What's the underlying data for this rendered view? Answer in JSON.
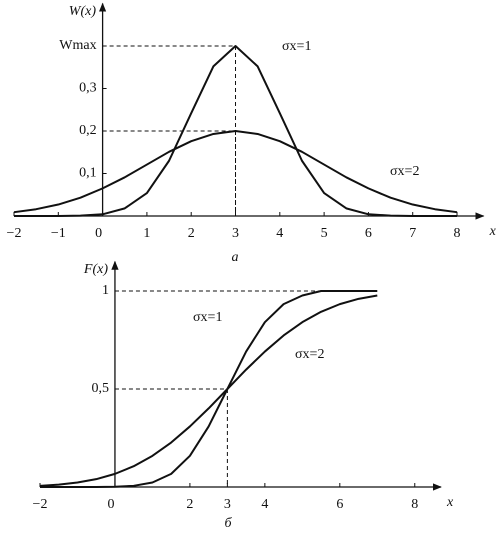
{
  "chart_data": [
    {
      "type": "line",
      "caption": "а",
      "y_label": "W(x)",
      "x_label": "x",
      "guides": "peak",
      "xlim": [
        -2,
        8.6
      ],
      "ylim": [
        0,
        0.5
      ],
      "xticks": [
        {
          "value": -2,
          "label": "−2"
        },
        {
          "value": -1,
          "label": "−1"
        },
        0,
        1,
        2,
        3,
        4,
        5,
        6,
        7,
        8
      ],
      "yticks": [
        {
          "value": 0.1,
          "label": "0,1"
        },
        {
          "value": 0.2,
          "label": "0,2"
        },
        {
          "value": 0.3,
          "label": "0,3"
        },
        {
          "value": 0.4,
          "label": "Wmax"
        }
      ],
      "x": [
        -2,
        -1.5,
        -1,
        -0.5,
        0,
        0.5,
        1,
        1.5,
        2,
        2.5,
        3,
        3.5,
        4,
        4.5,
        5,
        5.5,
        6,
        6.5,
        7,
        7.5,
        8
      ],
      "series": [
        {
          "name": "σx=1",
          "color": "#111111",
          "values": [
            0,
            0,
            0,
            0.001,
            0.004,
            0.018,
            0.054,
            0.13,
            0.242,
            0.352,
            0.4,
            0.352,
            0.242,
            0.13,
            0.054,
            0.018,
            0.004,
            0.001,
            0,
            0,
            0
          ]
        },
        {
          "name": "σx=2",
          "color": "#111111",
          "values": [
            0.009,
            0.016,
            0.027,
            0.043,
            0.065,
            0.091,
            0.121,
            0.151,
            0.176,
            0.193,
            0.2,
            0.193,
            0.176,
            0.151,
            0.121,
            0.091,
            0.065,
            0.043,
            0.027,
            0.016,
            0.009
          ]
        }
      ]
    },
    {
      "type": "line",
      "caption": "б",
      "y_label": "F(x)",
      "x_label": "x",
      "guides": "levels",
      "xlim": [
        -2,
        8.7
      ],
      "ylim": [
        0,
        1.15
      ],
      "xticks": [
        {
          "value": -2,
          "label": "−2"
        },
        0,
        2,
        3,
        4,
        6,
        8
      ],
      "yticks": [
        {
          "value": 0.5,
          "label": "0,5"
        },
        1
      ],
      "x": [
        -2,
        -1.5,
        -1,
        -0.5,
        0,
        0.5,
        1,
        1.5,
        2,
        2.5,
        3,
        3.5,
        4,
        4.5,
        5,
        5.5,
        6,
        6.5,
        7
      ],
      "series": [
        {
          "name": "σx=1",
          "color": "#111111",
          "values": [
            0,
            0,
            0,
            0,
            0.001,
            0.006,
            0.023,
            0.067,
            0.159,
            0.309,
            0.5,
            0.691,
            0.841,
            0.933,
            0.977,
            1,
            1,
            1,
            1
          ]
        },
        {
          "name": "σx=2",
          "color": "#111111",
          "values": [
            0.006,
            0.012,
            0.023,
            0.04,
            0.067,
            0.106,
            0.159,
            0.227,
            0.309,
            0.401,
            0.5,
            0.599,
            0.691,
            0.773,
            0.841,
            0.894,
            0.933,
            0.96,
            0.977
          ]
        }
      ]
    }
  ]
}
